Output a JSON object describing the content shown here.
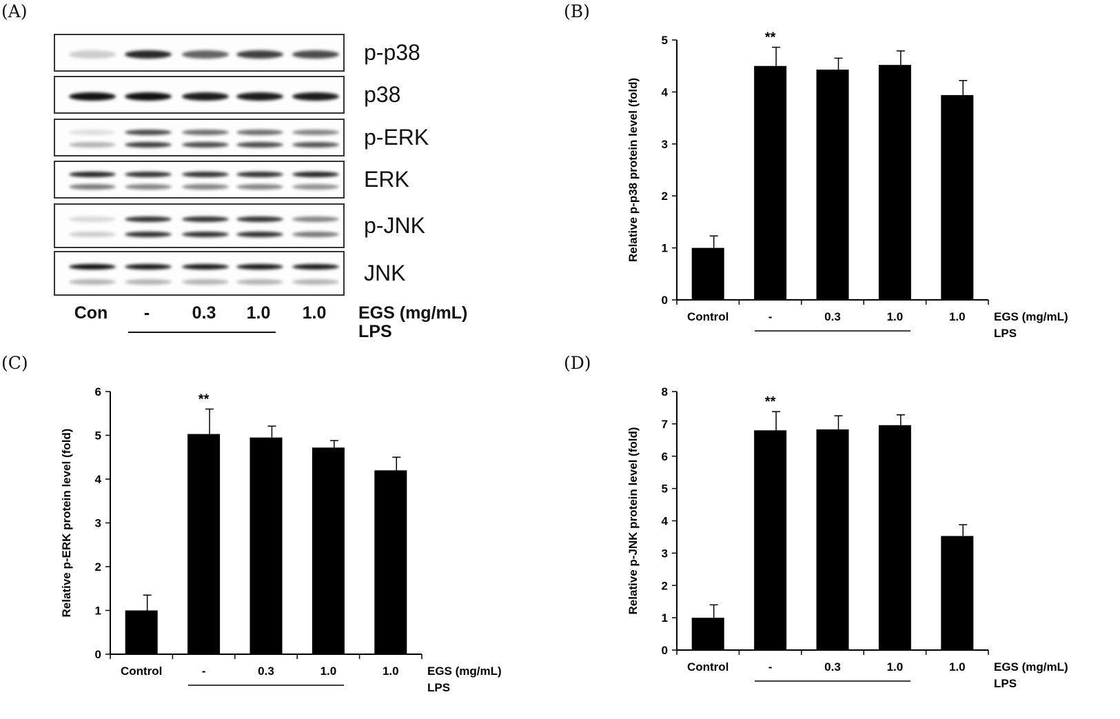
{
  "panels": {
    "a": "(A)",
    "b": "(B)",
    "c": "(C)",
    "d": "(D)"
  },
  "blot": {
    "rows": [
      {
        "name": "p-p38",
        "label": "p-p38",
        "bands": [
          [
            0.2
          ],
          [
            0.9
          ],
          [
            0.65
          ],
          [
            0.8
          ],
          [
            0.75
          ]
        ]
      },
      {
        "name": "p38",
        "label": "p38",
        "bands": [
          [
            1.0
          ],
          [
            1.0
          ],
          [
            0.95
          ],
          [
            0.95
          ],
          [
            0.95
          ]
        ]
      },
      {
        "name": "p-erk",
        "label": "p-ERK",
        "bands": [
          [
            0.12,
            0.3
          ],
          [
            0.75,
            0.8
          ],
          [
            0.6,
            0.75
          ],
          [
            0.6,
            0.75
          ],
          [
            0.5,
            0.7
          ]
        ]
      },
      {
        "name": "erk",
        "label": "ERK",
        "bands": [
          [
            0.9,
            0.55
          ],
          [
            0.85,
            0.5
          ],
          [
            0.85,
            0.5
          ],
          [
            0.85,
            0.5
          ],
          [
            0.9,
            0.45
          ]
        ]
      },
      {
        "name": "p-jnk",
        "label": "p-JNK",
        "bands": [
          [
            0.15,
            0.2
          ],
          [
            0.85,
            0.85
          ],
          [
            0.85,
            0.85
          ],
          [
            0.85,
            0.85
          ],
          [
            0.5,
            0.55
          ]
        ]
      },
      {
        "name": "jnk",
        "label": "JNK",
        "bands": [
          [
            1.0,
            0.3
          ],
          [
            0.95,
            0.3
          ],
          [
            0.95,
            0.3
          ],
          [
            0.95,
            0.3
          ],
          [
            0.95,
            0.3
          ]
        ]
      }
    ],
    "lanes": [
      "Con",
      "-",
      "0.3",
      "1.0",
      "1.0"
    ],
    "treatment_label": "EGS (mg/mL)",
    "lps_label": "LPS"
  },
  "chart_data": [
    {
      "id": "b",
      "type": "bar",
      "categories": [
        "Control",
        "-",
        "0.3",
        "1.0",
        "1.0"
      ],
      "values": [
        1.0,
        4.5,
        4.43,
        4.52,
        3.94
      ],
      "errors": [
        0.23,
        0.36,
        0.22,
        0.27,
        0.28
      ],
      "annotations": [
        "",
        "**",
        "",
        "",
        ""
      ],
      "ylabel": "Relative p-p38 protein level (fold)",
      "xlabel": "",
      "yticks": [
        0,
        1,
        2,
        3,
        4,
        5
      ],
      "ylim": [
        0,
        5
      ],
      "treatment_label": "EGS (mg/mL)",
      "lps_label": "LPS",
      "bar_color": "#000000"
    },
    {
      "id": "c",
      "type": "bar",
      "categories": [
        "Control",
        "-",
        "0.3",
        "1.0",
        "1.0"
      ],
      "values": [
        1.0,
        5.03,
        4.95,
        4.72,
        4.2
      ],
      "errors": [
        0.35,
        0.57,
        0.26,
        0.16,
        0.3
      ],
      "annotations": [
        "",
        "**",
        "",
        "",
        ""
      ],
      "ylabel": "Relative p-ERK protein level (fold)",
      "xlabel": "",
      "yticks": [
        0,
        1,
        2,
        3,
        4,
        5,
        6
      ],
      "ylim": [
        0,
        6
      ],
      "treatment_label": "EGS (mg/mL)",
      "lps_label": "LPS",
      "bar_color": "#000000"
    },
    {
      "id": "d",
      "type": "bar",
      "categories": [
        "Control",
        "-",
        "0.3",
        "1.0",
        "1.0"
      ],
      "values": [
        1.0,
        6.8,
        6.83,
        6.96,
        3.53
      ],
      "errors": [
        0.4,
        0.58,
        0.42,
        0.32,
        0.35
      ],
      "annotations": [
        "",
        "**",
        "",
        "",
        ""
      ],
      "ylabel": "Relative p-JNK protein level (fold)",
      "xlabel": "",
      "yticks": [
        0,
        1,
        2,
        3,
        4,
        5,
        6,
        7,
        8
      ],
      "ylim": [
        0,
        8
      ],
      "treatment_label": "EGS (mg/mL)",
      "lps_label": "LPS",
      "bar_color": "#000000"
    }
  ]
}
